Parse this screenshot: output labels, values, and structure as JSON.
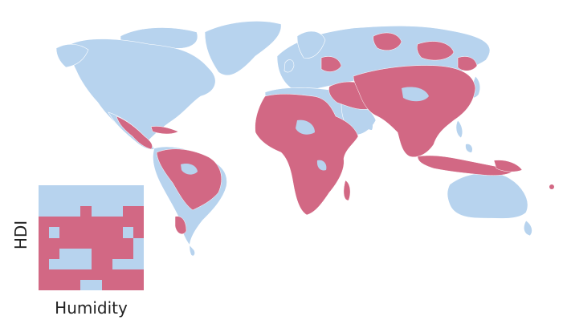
{
  "colors": {
    "low": "#b7d3ee",
    "high": "#d26884",
    "border": "#ffffff"
  },
  "legend": {
    "xlabel": "Humidity",
    "ylabel": "HDI",
    "grid": [
      [
        0,
        0,
        0,
        0,
        0,
        0,
        0,
        0,
        0,
        0
      ],
      [
        0,
        0,
        0,
        0,
        0,
        0,
        0,
        0,
        0,
        0
      ],
      [
        0,
        0,
        0,
        0,
        1,
        0,
        0,
        0,
        1,
        1
      ],
      [
        1,
        1,
        1,
        1,
        1,
        1,
        1,
        1,
        1,
        1
      ],
      [
        1,
        0,
        1,
        1,
        1,
        1,
        1,
        1,
        0,
        1
      ],
      [
        1,
        1,
        1,
        1,
        1,
        1,
        1,
        1,
        1,
        0
      ],
      [
        1,
        1,
        0,
        0,
        0,
        1,
        1,
        1,
        1,
        0
      ],
      [
        1,
        0,
        0,
        0,
        0,
        1,
        1,
        0,
        0,
        0
      ],
      [
        1,
        1,
        1,
        1,
        1,
        1,
        1,
        1,
        1,
        1
      ],
      [
        1,
        1,
        1,
        1,
        0,
        0,
        1,
        1,
        1,
        1
      ]
    ]
  }
}
